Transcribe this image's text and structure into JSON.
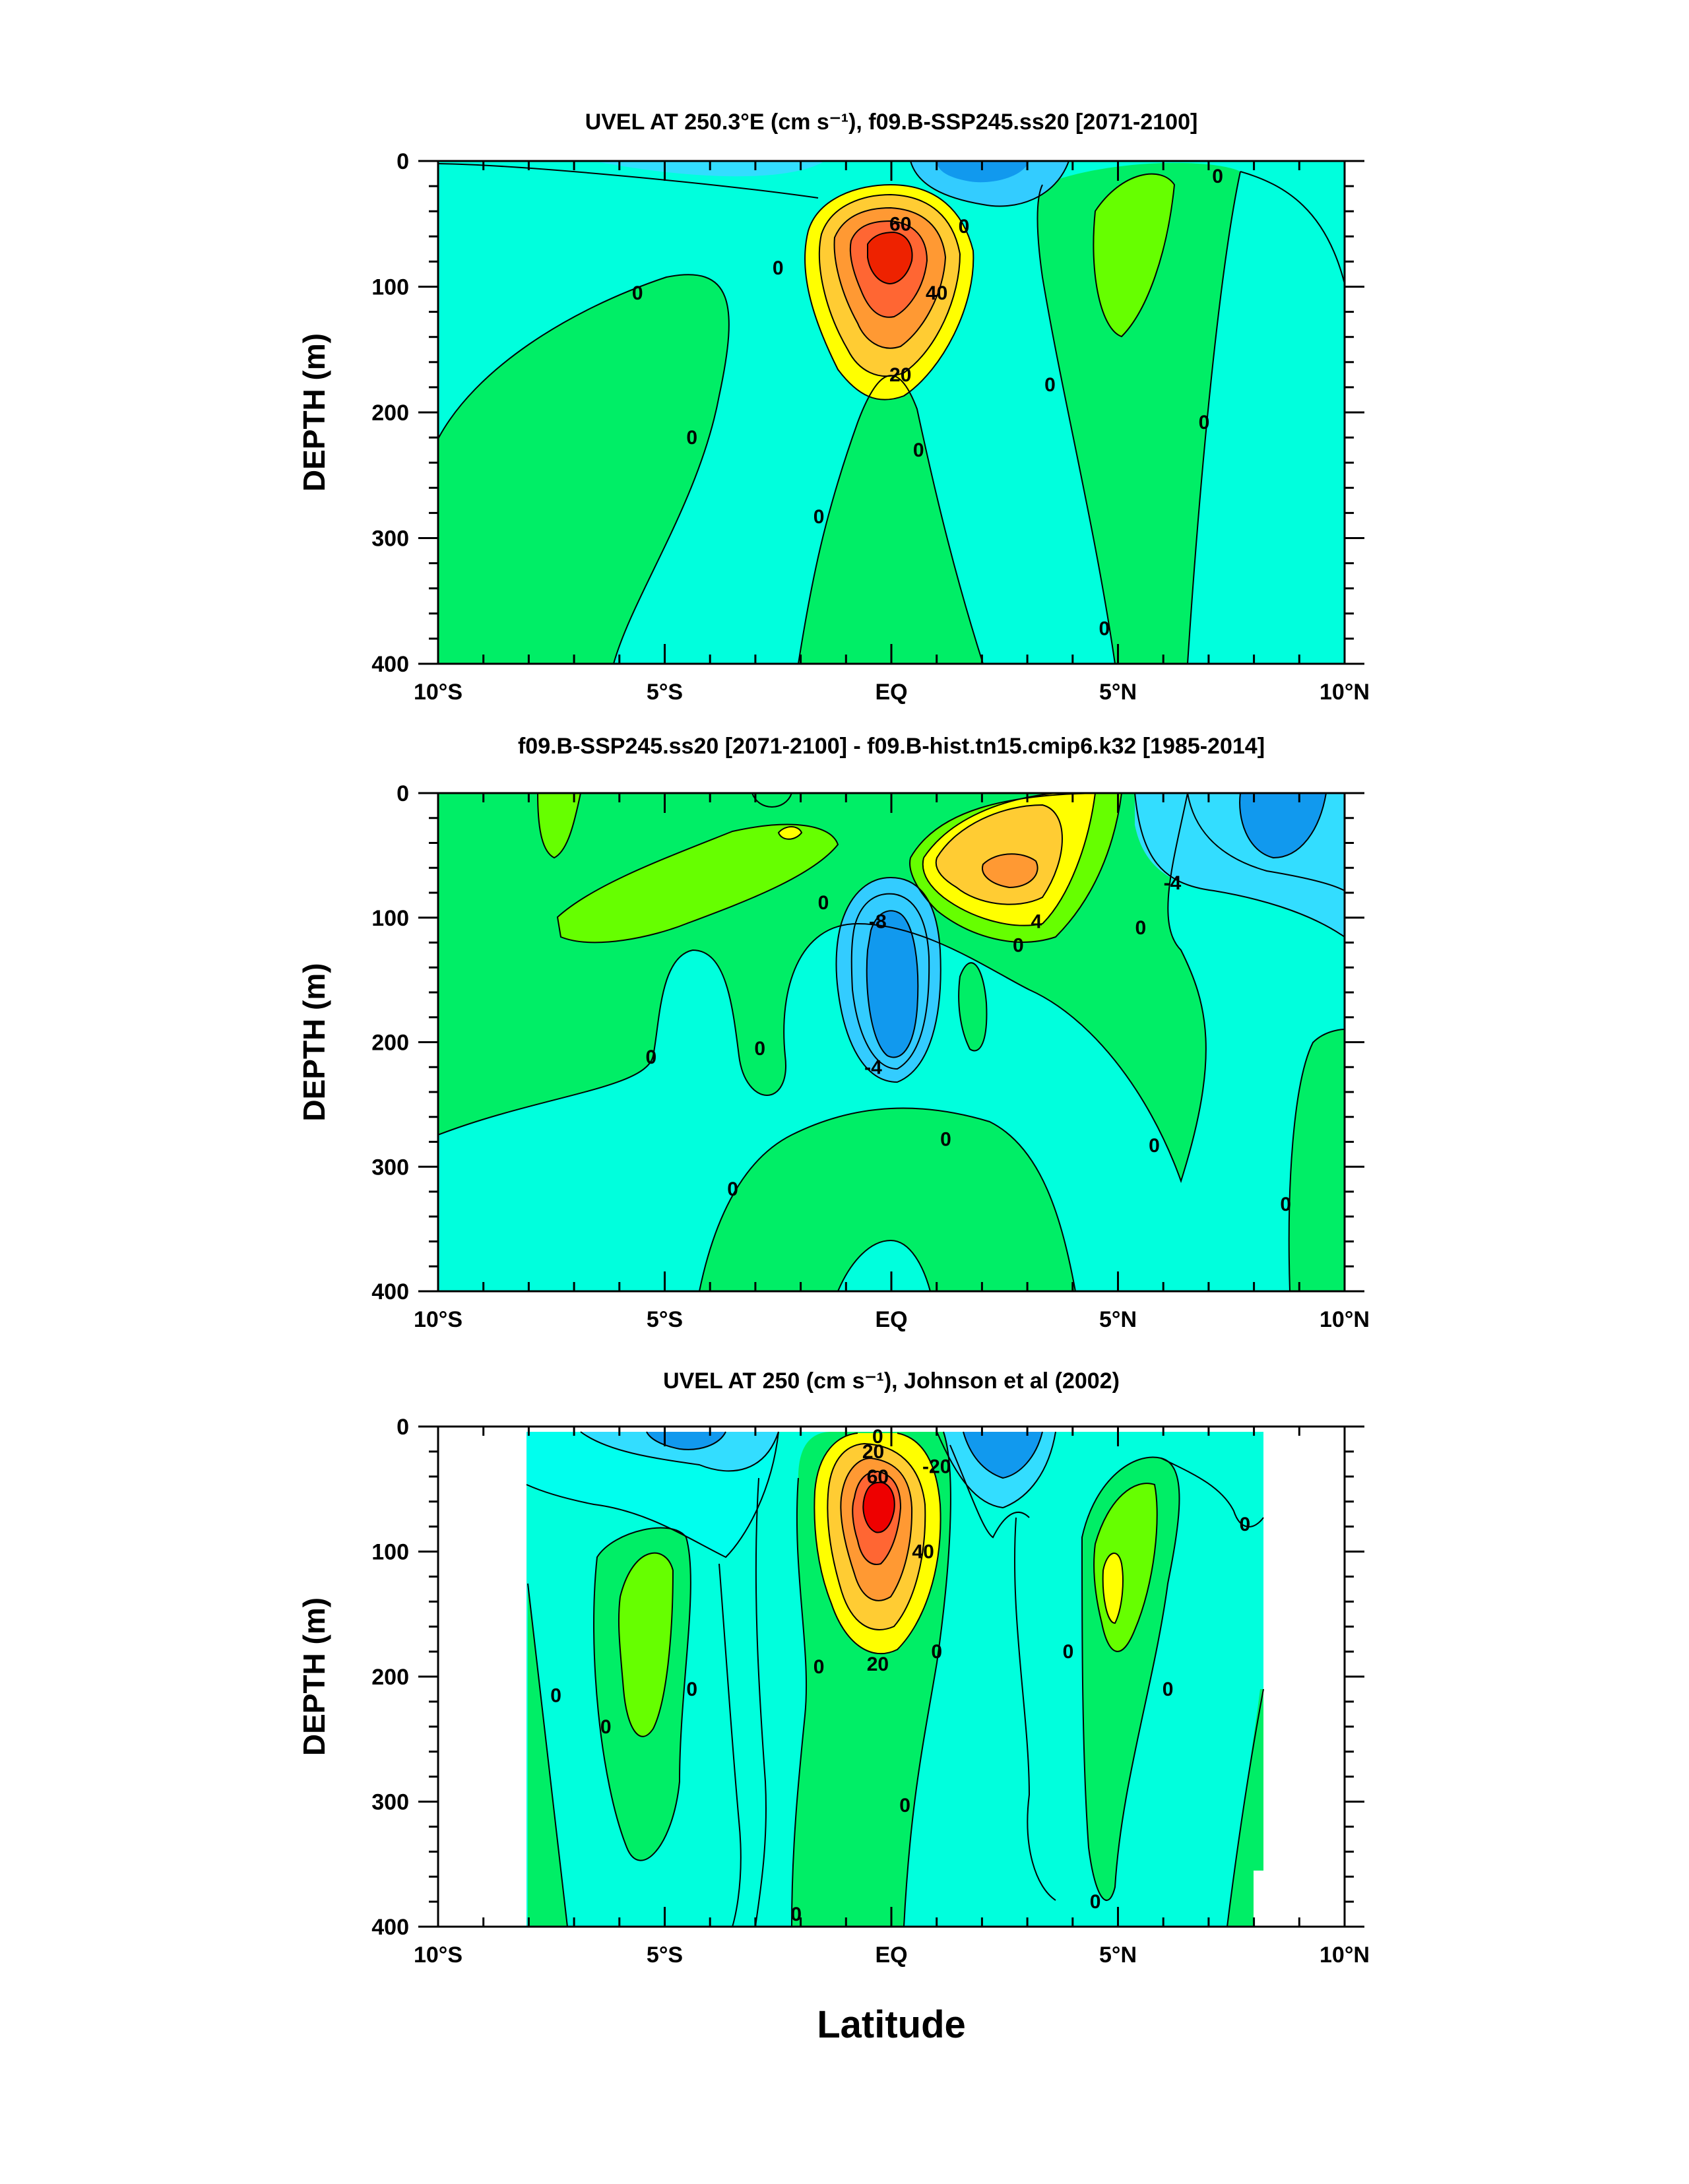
{
  "chart_data": [
    {
      "type": "contour",
      "title": "UVEL AT 250.3°E (cm s⁻¹), f09.B-SSP245.ss20 [2071-2100]",
      "xlabel": "",
      "ylabel": "DEPTH (m)",
      "xlim": [
        -10,
        10
      ],
      "ylim": [
        400,
        0
      ],
      "x_ticks": [
        -10,
        -5,
        0,
        5,
        10
      ],
      "x_tick_labels": [
        "10°S",
        "5°S",
        "EQ",
        "5°N",
        "10°N"
      ],
      "y_ticks": [
        0,
        100,
        200,
        300,
        400
      ],
      "y_tick_labels": [
        "0",
        "100",
        "200",
        "300",
        "400"
      ],
      "contour_labels": [
        {
          "text": "60",
          "lat": 0.2,
          "depth": 50
        },
        {
          "text": "40",
          "lat": 1.0,
          "depth": 105
        },
        {
          "text": "20",
          "lat": 0.2,
          "depth": 170
        },
        {
          "text": "0",
          "lat": -2.5,
          "depth": 85
        },
        {
          "text": "0",
          "lat": 1.6,
          "depth": 52
        },
        {
          "text": "0",
          "lat": -5.6,
          "depth": 105
        },
        {
          "text": "0",
          "lat": -4.4,
          "depth": 220
        },
        {
          "text": "0",
          "lat": -1.6,
          "depth": 283
        },
        {
          "text": "0",
          "lat": 0.6,
          "depth": 230
        },
        {
          "text": "0",
          "lat": 3.5,
          "depth": 178
        },
        {
          "text": "0",
          "lat": 4.7,
          "depth": 372
        },
        {
          "text": "0",
          "lat": 6.9,
          "depth": 208
        },
        {
          "text": "0",
          "lat": 7.2,
          "depth": 12
        }
      ]
    },
    {
      "type": "contour",
      "title": "f09.B-SSP245.ss20 [2071-2100] - f09.B-hist.tn15.cmip6.k32 [1985-2014]",
      "xlabel": "",
      "ylabel": "DEPTH (m)",
      "xlim": [
        -10,
        10
      ],
      "ylim": [
        400,
        0
      ],
      "x_ticks": [
        -10,
        -5,
        0,
        5,
        10
      ],
      "x_tick_labels": [
        "10°S",
        "5°S",
        "EQ",
        "5°N",
        "10°N"
      ],
      "y_ticks": [
        0,
        100,
        200,
        300,
        400
      ],
      "y_tick_labels": [
        "0",
        "100",
        "200",
        "300",
        "400"
      ],
      "contour_labels": [
        {
          "text": "-8",
          "lat": -0.3,
          "depth": 103
        },
        {
          "text": "-4",
          "lat": -0.4,
          "depth": 220
        },
        {
          "text": "-4",
          "lat": 6.2,
          "depth": 72
        },
        {
          "text": "4",
          "lat": 3.2,
          "depth": 103
        },
        {
          "text": "0",
          "lat": 2.8,
          "depth": 122
        },
        {
          "text": "0",
          "lat": 5.5,
          "depth": 108
        },
        {
          "text": "0",
          "lat": -1.5,
          "depth": 88
        },
        {
          "text": "0",
          "lat": -5.3,
          "depth": 212
        },
        {
          "text": "0",
          "lat": -2.9,
          "depth": 205
        },
        {
          "text": "0",
          "lat": 1.2,
          "depth": 278
        },
        {
          "text": "0",
          "lat": -3.5,
          "depth": 318
        },
        {
          "text": "0",
          "lat": 5.8,
          "depth": 283
        },
        {
          "text": "0",
          "lat": 8.7,
          "depth": 330
        }
      ]
    },
    {
      "type": "contour",
      "title": "UVEL AT 250 (cm s⁻¹), Johnson et al (2002)",
      "xlabel": "Latitude",
      "ylabel": "DEPTH (m)",
      "xlim": [
        -10,
        10
      ],
      "ylim": [
        400,
        0
      ],
      "x_ticks": [
        -10,
        -5,
        0,
        5,
        10
      ],
      "x_tick_labels": [
        "10°S",
        "5°S",
        "EQ",
        "5°N",
        "10°N"
      ],
      "y_ticks": [
        0,
        100,
        200,
        300,
        400
      ],
      "y_tick_labels": [
        "0",
        "100",
        "200",
        "300",
        "400"
      ],
      "contour_labels": [
        {
          "text": "0",
          "lat": -0.3,
          "depth": 8
        },
        {
          "text": "20",
          "lat": -0.4,
          "depth": 20
        },
        {
          "text": "60",
          "lat": -0.3,
          "depth": 40
        },
        {
          "text": "-20",
          "lat": 1.0,
          "depth": 32
        },
        {
          "text": "40",
          "lat": 0.7,
          "depth": 100
        },
        {
          "text": "20",
          "lat": -0.3,
          "depth": 190
        },
        {
          "text": "0",
          "lat": -7.4,
          "depth": 215
        },
        {
          "text": "0",
          "lat": -6.3,
          "depth": 240
        },
        {
          "text": "0",
          "lat": -4.4,
          "depth": 210
        },
        {
          "text": "0",
          "lat": -1.6,
          "depth": 192
        },
        {
          "text": "0",
          "lat": 1.0,
          "depth": 180
        },
        {
          "text": "0",
          "lat": 0.3,
          "depth": 303
        },
        {
          "text": "0",
          "lat": -2.1,
          "depth": 390
        },
        {
          "text": "0",
          "lat": 3.9,
          "depth": 180
        },
        {
          "text": "0",
          "lat": 6.1,
          "depth": 210
        },
        {
          "text": "0",
          "lat": 4.5,
          "depth": 380
        },
        {
          "text": "0",
          "lat": 7.8,
          "depth": 78
        }
      ]
    }
  ],
  "colors": {
    "cyan": "#00ffee",
    "aqua": "#00ffe0",
    "green": "#00ee66",
    "lime": "#66ff00",
    "yellow": "#ffff00",
    "gold": "#ffcc33",
    "orange": "#ff9933",
    "redorange": "#ff6633",
    "red": "#ee0000",
    "lightblue": "#33ccff",
    "blue": "#1199ee"
  }
}
